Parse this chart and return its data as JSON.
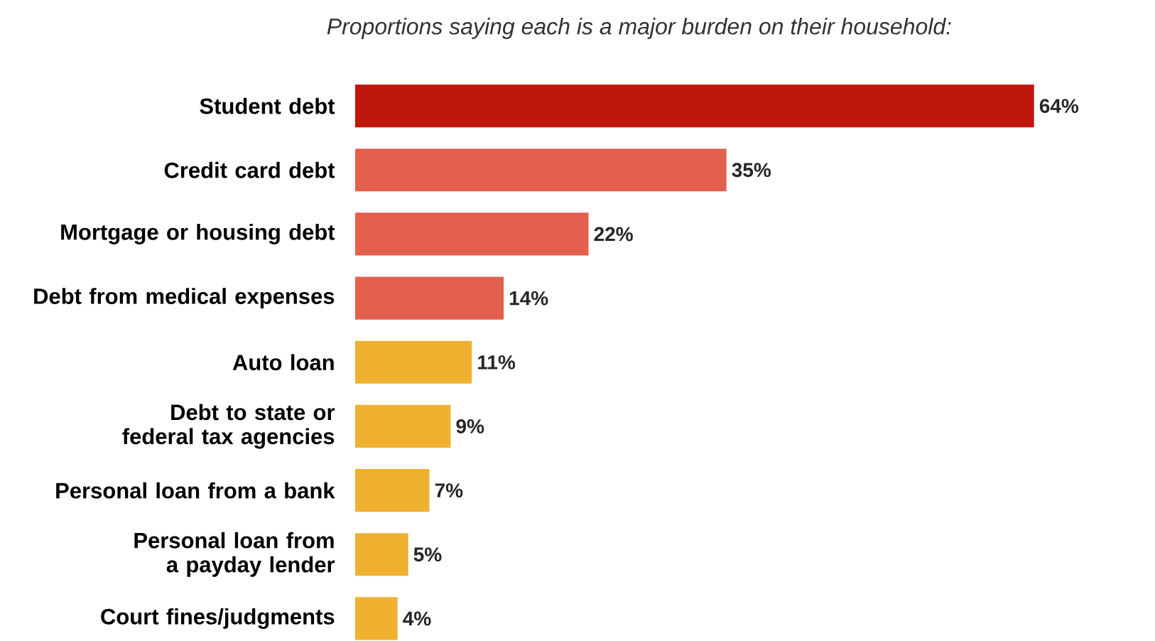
{
  "chart_data": {
    "type": "bar",
    "orientation": "horizontal",
    "title": "Proportions saying each is a major burden on their household:",
    "categories": [
      "Student debt",
      "Credit card debt",
      "Mortgage or housing debt",
      "Debt from medical expenses",
      "Auto loan",
      "Debt to state or federal tax agencies",
      "Personal loan from a bank",
      "Personal loan from a payday lender",
      "Court fines/judgments"
    ],
    "values": [
      64,
      35,
      22,
      14,
      11,
      9,
      7,
      5,
      4
    ],
    "colors": [
      "#c0170c",
      "#e4604e",
      "#e4604e",
      "#e4604e",
      "#f0b030",
      "#f0b030",
      "#f0b030",
      "#f0b030",
      "#f0b030"
    ],
    "value_labels": [
      "64%",
      "35%",
      "22%",
      "14%",
      "11%",
      "9%",
      "7%",
      "5%",
      "4%"
    ]
  }
}
